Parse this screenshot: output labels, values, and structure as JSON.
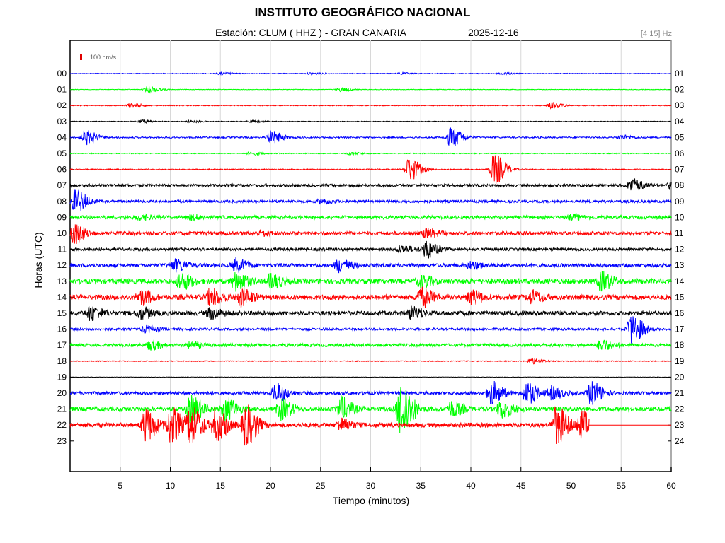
{
  "header": {
    "title": "INSTITUTO GEOGRÁFICO NACIONAL",
    "station": "Estación:  CLUM ( HHZ ) - GRAN CANARIA",
    "date": "2025-12-16",
    "band": "[4 15] Hz"
  },
  "scale": {
    "label": "100 nm/s",
    "color": "#e00000"
  },
  "chart_data": {
    "type": "line",
    "title": "INSTITUTO GEOGRÁFICO NACIONAL",
    "xlabel": "Tiempo (minutos)",
    "ylabel": "Horas (UTC)",
    "xlim": [
      0,
      60
    ],
    "x_ticks": [
      "5",
      "10",
      "15",
      "20",
      "25",
      "30",
      "35",
      "40",
      "45",
      "50",
      "55",
      "60"
    ],
    "grid": true,
    "colors": {
      "blue": "#0000ff",
      "green": "#00ff00",
      "red": "#ff0000",
      "black": "#000000"
    },
    "left_labels": [
      "00",
      "01",
      "02",
      "03",
      "04",
      "05",
      "06",
      "07",
      "08",
      "09",
      "10",
      "11",
      "12",
      "13",
      "14",
      "15",
      "16",
      "17",
      "18",
      "19",
      "20",
      "21",
      "22",
      "23"
    ],
    "right_labels": [
      "01",
      "02",
      "03",
      "04",
      "05",
      "06",
      "07",
      "08",
      "09",
      "10",
      "11",
      "12",
      "13",
      "14",
      "15",
      "16",
      "17",
      "18",
      "19",
      "20",
      "21",
      "22",
      "23",
      "24"
    ],
    "traces": [
      {
        "hour": "00",
        "color": "blue",
        "noise": 0.5,
        "events": [
          [
            15,
            1.5
          ],
          [
            24,
            1.2
          ],
          [
            33,
            1.2
          ],
          [
            43,
            1.5
          ]
        ]
      },
      {
        "hour": "01",
        "color": "green",
        "noise": 0.4,
        "events": [
          [
            7.8,
            4
          ],
          [
            27,
            2.5
          ]
        ]
      },
      {
        "hour": "02",
        "color": "red",
        "noise": 0.6,
        "events": [
          [
            6,
            3
          ],
          [
            48,
            4
          ]
        ]
      },
      {
        "hour": "03",
        "color": "black",
        "noise": 0.5,
        "events": [
          [
            7,
            2
          ],
          [
            12,
            1.5
          ],
          [
            18,
            1.5
          ]
        ]
      },
      {
        "hour": "04",
        "color": "blue",
        "noise": 1.0,
        "events": [
          [
            1.5,
            10
          ],
          [
            20,
            9
          ],
          [
            38,
            14
          ],
          [
            55,
            3
          ]
        ]
      },
      {
        "hour": "05",
        "color": "green",
        "noise": 0.6,
        "events": [
          [
            18,
            2
          ],
          [
            28,
            2
          ]
        ]
      },
      {
        "hour": "06",
        "color": "red",
        "noise": 0.7,
        "events": [
          [
            33.8,
            16
          ],
          [
            42.3,
            22
          ]
        ]
      },
      {
        "hour": "07",
        "color": "black",
        "noise": 1.8,
        "events": [
          [
            56,
            9
          ],
          [
            60,
            5
          ]
        ]
      },
      {
        "hour": "08",
        "color": "blue",
        "noise": 1.8,
        "events": [
          [
            0.5,
            16
          ],
          [
            25,
            3
          ]
        ]
      },
      {
        "hour": "09",
        "color": "green",
        "noise": 2.5,
        "events": [
          [
            7,
            3
          ],
          [
            12,
            3
          ],
          [
            50,
            3
          ]
        ]
      },
      {
        "hour": "10",
        "color": "red",
        "noise": 2.5,
        "events": [
          [
            0.3,
            14
          ],
          [
            35.5,
            6
          ],
          [
            19,
            3
          ]
        ]
      },
      {
        "hour": "11",
        "color": "black",
        "noise": 2.0,
        "events": [
          [
            35.5,
            12
          ],
          [
            33,
            5
          ]
        ]
      },
      {
        "hour": "12",
        "color": "blue",
        "noise": 2.5,
        "events": [
          [
            10.5,
            8
          ],
          [
            16.5,
            9
          ],
          [
            26.8,
            9
          ],
          [
            40,
            5
          ]
        ]
      },
      {
        "hour": "13",
        "color": "green",
        "noise": 3.5,
        "events": [
          [
            11,
            11
          ],
          [
            16.5,
            12
          ],
          [
            20,
            9
          ],
          [
            35,
            8
          ],
          [
            53,
            12
          ]
        ]
      },
      {
        "hour": "14",
        "color": "red",
        "noise": 3.5,
        "events": [
          [
            7,
            10
          ],
          [
            14,
            11
          ],
          [
            17,
            12
          ],
          [
            35,
            13
          ],
          [
            40,
            9
          ],
          [
            46,
            8
          ]
        ]
      },
      {
        "hour": "15",
        "color": "black",
        "noise": 3.0,
        "events": [
          [
            2,
            10
          ],
          [
            7,
            8
          ],
          [
            14,
            7
          ],
          [
            34,
            8
          ]
        ]
      },
      {
        "hour": "16",
        "color": "blue",
        "noise": 1.6,
        "events": [
          [
            56,
            22
          ],
          [
            7.5,
            5
          ]
        ]
      },
      {
        "hour": "17",
        "color": "green",
        "noise": 2.2,
        "events": [
          [
            8,
            6
          ],
          [
            53,
            7
          ],
          [
            12,
            4
          ]
        ]
      },
      {
        "hour": "18",
        "color": "red",
        "noise": 0.6,
        "events": [
          [
            46,
            4
          ]
        ]
      },
      {
        "hour": "19",
        "color": "black",
        "noise": 0.3,
        "events": []
      },
      {
        "hour": "20",
        "color": "blue",
        "noise": 2.2,
        "events": [
          [
            20.5,
            13
          ],
          [
            42,
            16
          ],
          [
            45.5,
            15
          ],
          [
            48,
            9
          ],
          [
            52,
            16
          ]
        ]
      },
      {
        "hour": "21",
        "color": "green",
        "noise": 3.2,
        "events": [
          [
            12,
            18
          ],
          [
            15.5,
            15
          ],
          [
            21,
            14
          ],
          [
            27,
            15
          ],
          [
            33,
            40
          ],
          [
            38,
            10
          ],
          [
            43,
            12
          ]
        ]
      },
      {
        "hour": "22",
        "color": "red",
        "noise": 3.0,
        "events": [
          [
            7.5,
            22
          ],
          [
            10,
            24
          ],
          [
            12,
            26
          ],
          [
            14.5,
            22
          ],
          [
            17.5,
            28
          ],
          [
            27,
            8
          ],
          [
            48.5,
            26
          ],
          [
            51,
            18
          ]
        ],
        "end": 51.8
      }
    ]
  }
}
